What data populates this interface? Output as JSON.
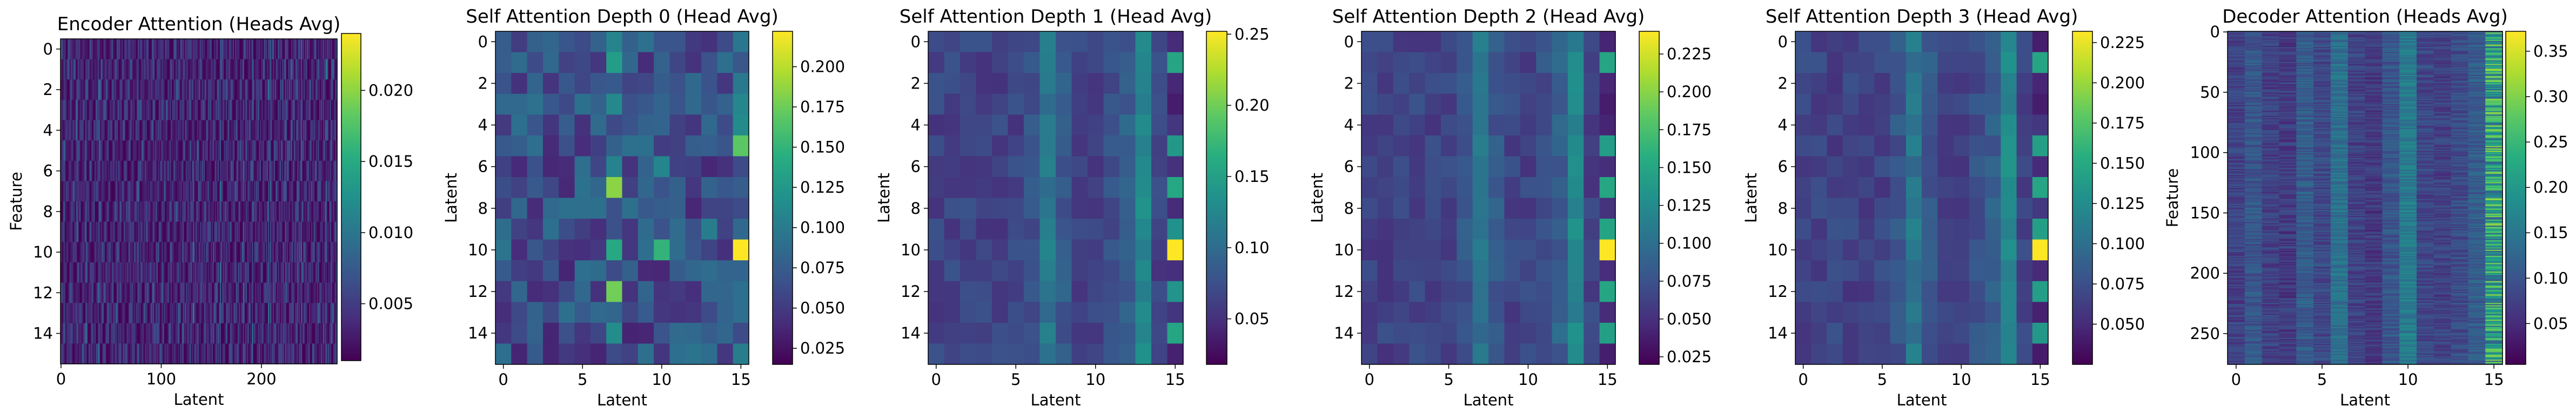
{
  "chart_data": [
    {
      "type": "heatmap",
      "title": "Encoder Attention (Heads Avg)",
      "xlabel": "Latent",
      "ylabel": "Feature",
      "xticks": [
        "0",
        "100",
        "200"
      ],
      "yticks": [
        "0",
        "2",
        "4",
        "6",
        "8",
        "10",
        "12",
        "14"
      ],
      "xlim": [
        -0.5,
        275.5
      ],
      "ylim": [
        15.5,
        -0.5
      ],
      "n_rows": 16,
      "n_cols": 276,
      "value_range": [
        0.001,
        0.024
      ],
      "colormap": "viridis",
      "colorbar_ticks": [
        "0.005",
        "0.010",
        "0.015",
        "0.020"
      ],
      "grid": false
    },
    {
      "type": "heatmap",
      "title": "Self Attention Depth 0 (Head Avg)",
      "xlabel": "Latent",
      "ylabel": "Latent",
      "xticks": [
        "0",
        "5",
        "10",
        "15"
      ],
      "yticks": [
        "0",
        "2",
        "4",
        "6",
        "8",
        "10",
        "12",
        "14"
      ],
      "xlim": [
        -0.5,
        15.5
      ],
      "ylim": [
        15.5,
        -0.5
      ],
      "n_rows": 16,
      "n_cols": 16,
      "value_range": [
        0.015,
        0.222
      ],
      "colormap": "viridis",
      "colorbar_ticks": [
        "0.025",
        "0.050",
        "0.075",
        "0.100",
        "0.125",
        "0.150",
        "0.175",
        "0.200"
      ],
      "grid": false
    },
    {
      "type": "heatmap",
      "title": "Self Attention Depth 1 (Head Avg)",
      "xlabel": "Latent",
      "ylabel": "Latent",
      "xticks": [
        "0",
        "5",
        "10",
        "15"
      ],
      "yticks": [
        "0",
        "2",
        "4",
        "6",
        "8",
        "10",
        "12",
        "14"
      ],
      "xlim": [
        -0.5,
        15.5
      ],
      "ylim": [
        15.5,
        -0.5
      ],
      "n_rows": 16,
      "n_cols": 16,
      "value_range": [
        0.018,
        0.252
      ],
      "colormap": "viridis",
      "colorbar_ticks": [
        "0.05",
        "0.10",
        "0.15",
        "0.20",
        "0.25"
      ],
      "grid": false
    },
    {
      "type": "heatmap",
      "title": "Self Attention Depth 2 (Head Avg)",
      "xlabel": "Latent",
      "ylabel": "Latent",
      "xticks": [
        "0",
        "5",
        "10",
        "15"
      ],
      "yticks": [
        "0",
        "2",
        "4",
        "6",
        "8",
        "10",
        "12",
        "14"
      ],
      "xlim": [
        -0.5,
        15.5
      ],
      "ylim": [
        15.5,
        -0.5
      ],
      "n_rows": 16,
      "n_cols": 16,
      "value_range": [
        0.02,
        0.24
      ],
      "colormap": "viridis",
      "colorbar_ticks": [
        "0.025",
        "0.050",
        "0.075",
        "0.100",
        "0.125",
        "0.150",
        "0.175",
        "0.200",
        "0.225"
      ],
      "grid": false
    },
    {
      "type": "heatmap",
      "title": "Self Attention Depth 3 (Head Avg)",
      "xlabel": "Latent",
      "ylabel": "Latent",
      "xticks": [
        "0",
        "5",
        "10",
        "15"
      ],
      "yticks": [
        "0",
        "2",
        "4",
        "6",
        "8",
        "10",
        "12",
        "14"
      ],
      "xlim": [
        -0.5,
        15.5
      ],
      "ylim": [
        15.5,
        -0.5
      ],
      "n_rows": 16,
      "n_cols": 16,
      "value_range": [
        0.025,
        0.232
      ],
      "colormap": "viridis",
      "colorbar_ticks": [
        "0.050",
        "0.075",
        "0.100",
        "0.125",
        "0.150",
        "0.175",
        "0.200",
        "0.225"
      ],
      "grid": false
    },
    {
      "type": "heatmap",
      "title": "Decoder Attention (Heads Avg)",
      "xlabel": "Latent",
      "ylabel": "Feature",
      "xticks": [
        "0",
        "5",
        "10",
        "15"
      ],
      "yticks": [
        "0",
        "50",
        "100",
        "150",
        "200",
        "250"
      ],
      "xlim": [
        -0.5,
        15.5
      ],
      "ylim": [
        275.5,
        -0.5
      ],
      "n_rows": 276,
      "n_cols": 16,
      "value_range": [
        0.005,
        0.372
      ],
      "colormap": "viridis",
      "colorbar_ticks": [
        "0.05",
        "0.10",
        "0.15",
        "0.20",
        "0.25",
        "0.30",
        "0.35"
      ],
      "grid": false
    }
  ]
}
